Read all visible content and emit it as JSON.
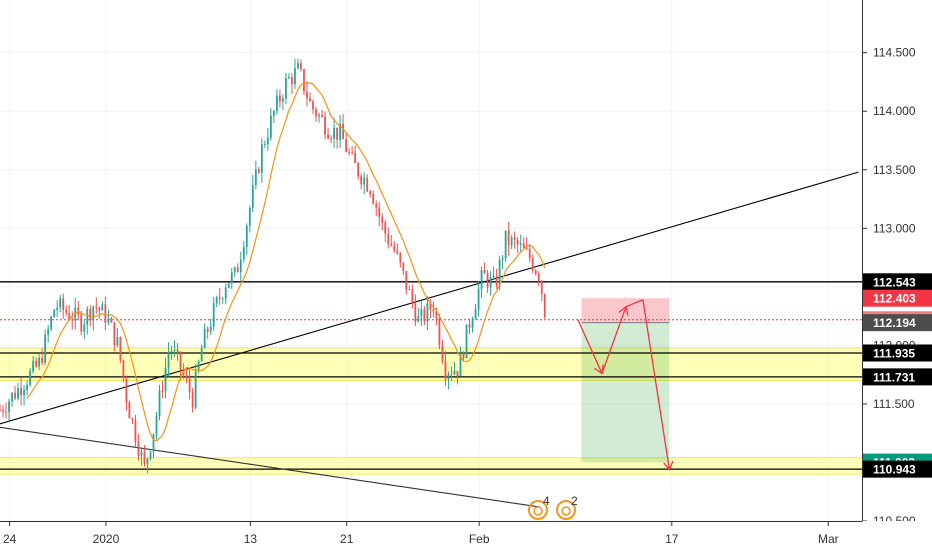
{
  "chart_data": {
    "type": "candlestick",
    "instrument_hint": "",
    "y_ticks": [
      "110.500",
      "111.000",
      "111.500",
      "112.000",
      "112.500",
      "113.000",
      "113.500",
      "114.000",
      "114.500"
    ],
    "y_tick_values": [
      110.5,
      111.0,
      111.5,
      112.0,
      112.5,
      113.0,
      113.5,
      114.0,
      114.5
    ],
    "x_ticks": [
      {
        "label": "24",
        "day": -8
      },
      {
        "label": "2020",
        "day": 0
      },
      {
        "label": "13",
        "day": 12
      },
      {
        "label": "21",
        "day": 20
      },
      {
        "label": "Feb",
        "day": 31
      },
      {
        "label": "17",
        "day": 47
      },
      {
        "label": "Mar",
        "day": 60
      }
    ],
    "price_badges": [
      {
        "label": "112.543",
        "value": 112.543,
        "bg": "#000000",
        "fg": "#ffffff"
      },
      {
        "label": "112.403",
        "value": 112.403,
        "bg": "#f23645",
        "fg": "#ffffff"
      },
      {
        "label": "112.219",
        "value": 112.219,
        "bg": "#f77c80",
        "fg": "#ffffff"
      },
      {
        "label": "112.194",
        "value": 112.194,
        "bg": "#4d4d4d",
        "fg": "#ffffff"
      },
      {
        "label": "111.935",
        "value": 111.935,
        "bg": "#000000",
        "fg": "#ffffff"
      },
      {
        "label": "111.731",
        "value": 111.731,
        "bg": "#000000",
        "fg": "#ffffff"
      },
      {
        "label": "111.003",
        "value": 111.003,
        "bg": "#089981",
        "fg": "#ffffff"
      },
      {
        "label": "110.943",
        "value": 110.943,
        "bg": "#000000",
        "fg": "#ffffff"
      }
    ],
    "horizontal_lines": [
      112.543,
      111.935,
      111.731,
      110.943
    ],
    "current_price_line": 112.219,
    "zones": [
      {
        "top": 111.98,
        "bottom": 111.7,
        "color": "#ffff00"
      },
      {
        "top": 111.04,
        "bottom": 110.9,
        "color": "#ffff00"
      }
    ],
    "trendlines": [
      {
        "x1_day": -8.8,
        "y1": 111.33,
        "x2_day": 62.5,
        "y2": 113.48,
        "color": "#000000"
      },
      {
        "x1_day": -8.8,
        "y1": 111.3,
        "x2_day": 36.0,
        "y2": 110.62,
        "color": "#333333"
      }
    ],
    "position": {
      "x1_day": 39.5,
      "x2_day": 46.8,
      "entry": 112.194,
      "stop": 112.403,
      "target": 111.003
    },
    "projection_path": [
      {
        "day": 39.2,
        "y": 112.22
      },
      {
        "day": 41.2,
        "y": 111.76
      },
      {
        "day": 43.2,
        "y": 112.33
      },
      {
        "day": 44.6,
        "y": 112.39
      },
      {
        "day": 46.8,
        "y": 110.94
      }
    ],
    "candles": {
      "start_day": -8.8,
      "step_days": 0.25,
      "anchors": [
        [
          -8.8,
          111.45
        ],
        [
          -7.5,
          111.6
        ],
        [
          -5.5,
          111.85
        ],
        [
          -4.2,
          112.35
        ],
        [
          -3.5,
          112.3
        ],
        [
          -2.0,
          112.2
        ],
        [
          -1.0,
          112.35
        ],
        [
          0.0,
          112.25
        ],
        [
          1.0,
          112.0
        ],
        [
          1.8,
          111.5
        ],
        [
          3.2,
          110.95
        ],
        [
          4.0,
          111.3
        ],
        [
          5.3,
          112.0
        ],
        [
          6.2,
          111.8
        ],
        [
          7.2,
          111.55
        ],
        [
          8.0,
          112.0
        ],
        [
          9.0,
          112.3
        ],
        [
          10.0,
          112.55
        ],
        [
          10.8,
          112.6
        ],
        [
          11.8,
          113.1
        ],
        [
          13.0,
          113.7
        ],
        [
          14.0,
          114.0
        ],
        [
          15.0,
          114.25
        ],
        [
          16.0,
          114.35
        ],
        [
          17.0,
          114.05
        ],
        [
          18.5,
          113.85
        ],
        [
          19.5,
          113.8
        ],
        [
          20.5,
          113.55
        ],
        [
          22.0,
          113.35
        ],
        [
          23.0,
          113.0
        ],
        [
          24.0,
          112.8
        ],
        [
          25.0,
          112.5
        ],
        [
          26.0,
          112.2
        ],
        [
          27.2,
          112.35
        ],
        [
          28.2,
          111.8
        ],
        [
          29.3,
          111.8
        ],
        [
          30.2,
          112.2
        ],
        [
          31.3,
          112.6
        ],
        [
          32.3,
          112.5
        ],
        [
          33.2,
          112.9
        ],
        [
          34.2,
          112.85
        ],
        [
          35.2,
          112.75
        ],
        [
          36.0,
          112.6
        ],
        [
          36.6,
          112.2
        ]
      ],
      "amplitude": 0.09,
      "up_color": "#26a69a",
      "down_color": "#ef5350"
    },
    "moving_average": {
      "period": 10,
      "color": "#f7931a"
    },
    "y_range": [
      110.5,
      114.95
    ],
    "x_range_days": [
      -8.8,
      62.8
    ],
    "grid": true,
    "watermark_icons": [
      {
        "label": "4",
        "name": "fire-icon"
      },
      {
        "label": "2",
        "name": "fire-icon"
      }
    ]
  }
}
